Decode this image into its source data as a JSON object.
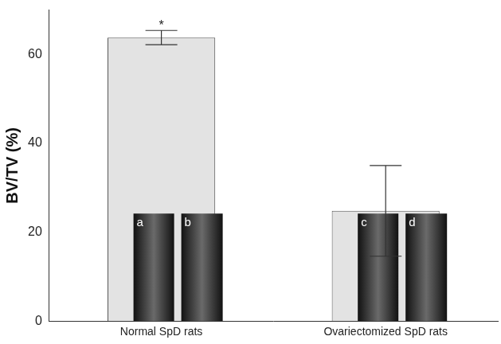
{
  "chart_data": {
    "type": "bar",
    "categories": [
      "Normal SpD rats",
      "Ovariectomized SpD rats"
    ],
    "values": [
      63.8,
      24.8
    ],
    "errors": [
      1.6,
      10.2
    ],
    "color": "#e3e3e3",
    "y_label": "BV/TV (%)",
    "ylim": [
      0,
      70
    ],
    "yticks": [
      0,
      20,
      40,
      60
    ],
    "grid": false,
    "annotations": [
      {
        "category": "Normal SpD rats",
        "text": "*"
      }
    ],
    "inset_labels": [
      [
        "a",
        "b"
      ],
      [
        "c",
        "d"
      ]
    ]
  }
}
